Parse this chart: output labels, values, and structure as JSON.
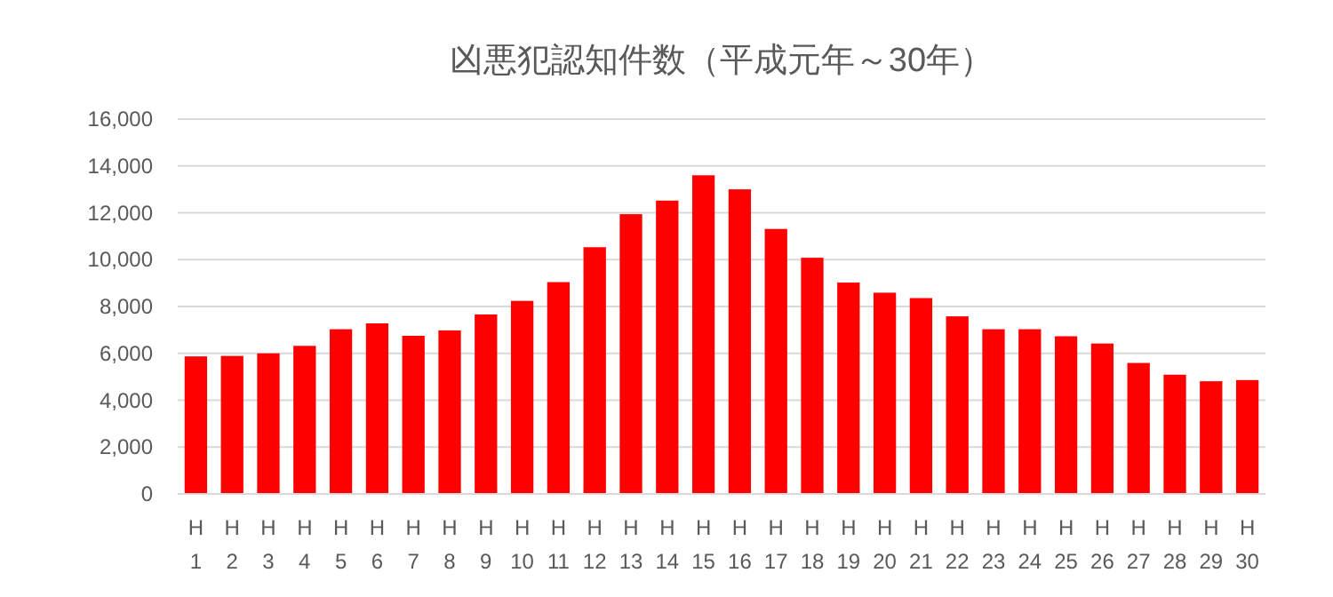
{
  "chart_data": {
    "type": "bar",
    "title": "凶悪犯認知件数（平成元年～30年）",
    "categories": [
      "H\n1",
      "H\n2",
      "H\n3",
      "H\n4",
      "H\n5",
      "H\n6",
      "H\n7",
      "H\n8",
      "H\n9",
      "H\n10",
      "H\n11",
      "H\n12",
      "H\n13",
      "H\n14",
      "H\n15",
      "H\n16",
      "H\n17",
      "H\n18",
      "H\n19",
      "H\n20",
      "H\n21",
      "H\n22",
      "H\n23",
      "H\n24",
      "H\n25",
      "H\n26",
      "H\n27",
      "H\n28",
      "H\n29",
      "H\n30"
    ],
    "values": [
      5870,
      5890,
      6000,
      6320,
      7030,
      7280,
      6750,
      6980,
      7660,
      8240,
      9040,
      10530,
      11940,
      12520,
      13600,
      13000,
      11310,
      10080,
      9020,
      8590,
      8360,
      7580,
      7030,
      7030,
      6730,
      6420,
      5590,
      5090,
      4810,
      4860
    ],
    "color": "#ff0000",
    "ylim": [
      0,
      16000
    ],
    "yticks": [
      {
        "value": 0,
        "label": "0"
      },
      {
        "value": 2000,
        "label": "2,000"
      },
      {
        "value": 4000,
        "label": "4,000"
      },
      {
        "value": 6000,
        "label": "6,000"
      },
      {
        "value": 8000,
        "label": "8,000"
      },
      {
        "value": 10000,
        "label": "10,000"
      },
      {
        "value": 12000,
        "label": "12,000"
      },
      {
        "value": 14000,
        "label": "14,000"
      },
      {
        "value": 16000,
        "label": "16,000"
      }
    ],
    "grid": "y"
  }
}
